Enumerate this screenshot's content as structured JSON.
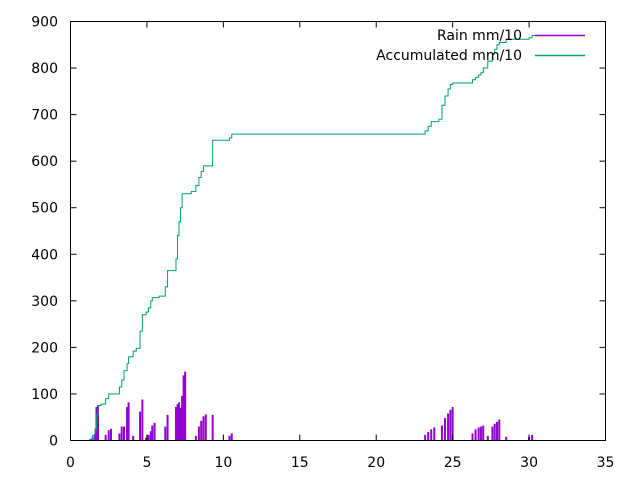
{
  "chart_data": {
    "type": "line",
    "xlim": [
      0,
      35
    ],
    "ylim": [
      0,
      900
    ],
    "x_ticks": [
      0,
      5,
      10,
      15,
      20,
      25,
      30,
      35
    ],
    "y_ticks": [
      0,
      100,
      200,
      300,
      400,
      500,
      600,
      700,
      800,
      900
    ],
    "grid": false,
    "legend_position": "top-right",
    "series": [
      {
        "name": "Rain mm/10",
        "style": "impulses",
        "color": "#9400d3",
        "points": [
          [
            1.3,
            3
          ],
          [
            1.45,
            8
          ],
          [
            1.6,
            14
          ],
          [
            1.7,
            72
          ],
          [
            1.8,
            76
          ],
          [
            2.3,
            12
          ],
          [
            2.5,
            22
          ],
          [
            2.65,
            25
          ],
          [
            3.2,
            15
          ],
          [
            3.35,
            30
          ],
          [
            3.5,
            30
          ],
          [
            3.7,
            72
          ],
          [
            3.8,
            82
          ],
          [
            4.1,
            10
          ],
          [
            4.55,
            62
          ],
          [
            4.7,
            88
          ],
          [
            4.95,
            6
          ],
          [
            5.1,
            12
          ],
          [
            5.25,
            20
          ],
          [
            5.35,
            32
          ],
          [
            5.5,
            38
          ],
          [
            6.2,
            30
          ],
          [
            6.35,
            55
          ],
          [
            6.9,
            72
          ],
          [
            7.0,
            78
          ],
          [
            7.1,
            82
          ],
          [
            7.2,
            70
          ],
          [
            7.3,
            96
          ],
          [
            7.4,
            140
          ],
          [
            7.5,
            148
          ],
          [
            8.2,
            10
          ],
          [
            8.4,
            30
          ],
          [
            8.55,
            42
          ],
          [
            8.7,
            52
          ],
          [
            8.85,
            56
          ],
          [
            9.3,
            55
          ],
          [
            10.4,
            10
          ],
          [
            10.55,
            15
          ],
          [
            23.2,
            12
          ],
          [
            23.4,
            18
          ],
          [
            23.6,
            24
          ],
          [
            23.8,
            28
          ],
          [
            24.3,
            32
          ],
          [
            24.5,
            48
          ],
          [
            24.7,
            58
          ],
          [
            24.85,
            66
          ],
          [
            25.0,
            72
          ],
          [
            26.3,
            15
          ],
          [
            26.5,
            24
          ],
          [
            26.7,
            28
          ],
          [
            26.85,
            30
          ],
          [
            27.0,
            32
          ],
          [
            27.3,
            10
          ],
          [
            27.6,
            30
          ],
          [
            27.75,
            36
          ],
          [
            27.9,
            40
          ],
          [
            28.05,
            45
          ],
          [
            28.5,
            8
          ],
          [
            30.0,
            8
          ],
          [
            30.2,
            12
          ]
        ]
      },
      {
        "name": "Accumulated mm/10",
        "style": "steps",
        "color": "#009e73",
        "points": [
          [
            1.2,
            0
          ],
          [
            1.3,
            3
          ],
          [
            1.45,
            11
          ],
          [
            1.6,
            25
          ],
          [
            1.7,
            55
          ],
          [
            1.8,
            75
          ],
          [
            2.0,
            78
          ],
          [
            2.3,
            90
          ],
          [
            2.5,
            100
          ],
          [
            2.65,
            100
          ],
          [
            3.2,
            115
          ],
          [
            3.35,
            130
          ],
          [
            3.5,
            150
          ],
          [
            3.7,
            165
          ],
          [
            3.8,
            180
          ],
          [
            4.1,
            192
          ],
          [
            4.3,
            198
          ],
          [
            4.55,
            235
          ],
          [
            4.7,
            270
          ],
          [
            4.95,
            276
          ],
          [
            5.1,
            285
          ],
          [
            5.25,
            300
          ],
          [
            5.35,
            307
          ],
          [
            5.8,
            310
          ],
          [
            6.2,
            330
          ],
          [
            6.35,
            365
          ],
          [
            6.9,
            390
          ],
          [
            7.0,
            440
          ],
          [
            7.1,
            470
          ],
          [
            7.2,
            500
          ],
          [
            7.3,
            530
          ],
          [
            7.9,
            535
          ],
          [
            8.2,
            548
          ],
          [
            8.4,
            565
          ],
          [
            8.55,
            578
          ],
          [
            8.7,
            590
          ],
          [
            9.3,
            645
          ],
          [
            10.4,
            650
          ],
          [
            10.55,
            658
          ],
          [
            23.2,
            665
          ],
          [
            23.4,
            675
          ],
          [
            23.6,
            685
          ],
          [
            24.1,
            690
          ],
          [
            24.3,
            720
          ],
          [
            24.5,
            740
          ],
          [
            24.7,
            755
          ],
          [
            24.85,
            765
          ],
          [
            25.0,
            768
          ],
          [
            26.3,
            775
          ],
          [
            26.5,
            780
          ],
          [
            26.7,
            785
          ],
          [
            26.85,
            790
          ],
          [
            27.0,
            800
          ],
          [
            27.3,
            815
          ],
          [
            27.6,
            830
          ],
          [
            27.75,
            840
          ],
          [
            27.9,
            850
          ],
          [
            28.05,
            855
          ],
          [
            28.5,
            862
          ],
          [
            30.0,
            865
          ],
          [
            30.2,
            870
          ]
        ]
      }
    ]
  }
}
